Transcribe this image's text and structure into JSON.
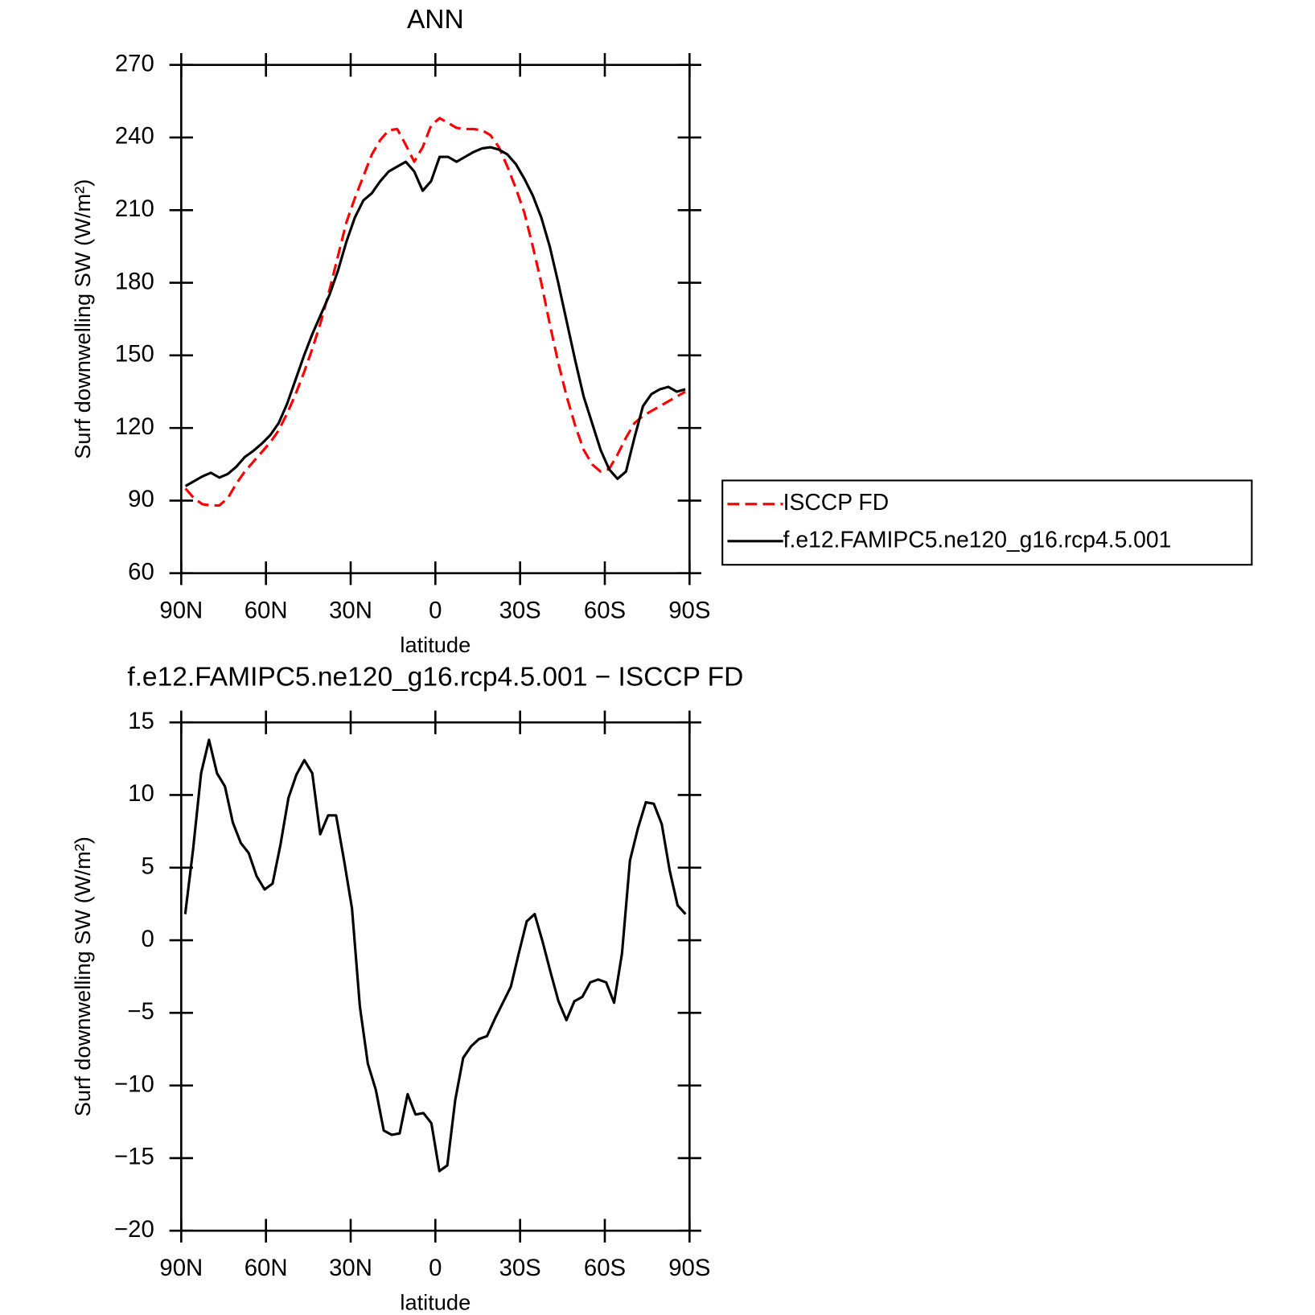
{
  "chart_data": [
    {
      "type": "line",
      "title": "ANN",
      "xlabel": "latitude",
      "ylabel": "Surf downwelling SW (W/m²)",
      "x": [
        88.5,
        85.5,
        82.5,
        79.5,
        76.5,
        73.5,
        70.5,
        67.5,
        64.5,
        61.5,
        58.5,
        55.5,
        52.5,
        49.5,
        46.5,
        43.5,
        40.5,
        37.5,
        34.5,
        31.5,
        28.5,
        25.5,
        22.5,
        19.5,
        16.5,
        13.5,
        10.5,
        7.5,
        4.5,
        1.5,
        -1.5,
        -4.5,
        -7.5,
        -10.5,
        -13.5,
        -16.5,
        -19.5,
        -22.5,
        -25.5,
        -28.5,
        -31.5,
        -34.5,
        -37.5,
        -40.5,
        -43.5,
        -46.5,
        -49.5,
        -52.5,
        -55.5,
        -58.5,
        -61.5,
        -64.5,
        -67.5,
        -70.5,
        -73.5,
        -76.5,
        -79.5,
        -82.5,
        -85.5,
        -88.5
      ],
      "series": [
        {
          "name": "ISCCP FD",
          "color": "#ff0000",
          "line_style": "dashed",
          "values": [
            95,
            91,
            88.5,
            88,
            88,
            91,
            97,
            102,
            106,
            110,
            114,
            119,
            126,
            134,
            143,
            153,
            164,
            177,
            191,
            205,
            215,
            224,
            233,
            239,
            243,
            243.5,
            237,
            230,
            236,
            245,
            248,
            246,
            244,
            243.5,
            243.5,
            243,
            241,
            236,
            228,
            219,
            209,
            195,
            180,
            163,
            147,
            133,
            121,
            111,
            105,
            102,
            103,
            109,
            116,
            122,
            125,
            127,
            129,
            131,
            133,
            135
          ]
        },
        {
          "name": "f.e12.FAMIPC5.ne120_g16.rcp4.5.001",
          "color": "#000000",
          "line_style": "solid",
          "values": [
            96,
            98,
            100,
            101.5,
            99.5,
            101,
            104,
            108,
            110.5,
            113.5,
            117,
            122,
            130,
            140,
            150,
            159,
            167,
            175,
            185,
            197,
            207,
            214,
            217,
            222,
            226,
            228,
            230,
            226,
            218,
            222,
            232,
            232,
            230,
            232,
            234,
            235.5,
            236,
            235,
            233,
            229,
            223,
            216,
            207,
            195,
            180,
            164,
            148,
            133,
            122,
            111,
            103,
            99,
            102,
            116,
            129,
            134,
            136,
            137,
            135,
            136
          ]
        }
      ],
      "xlim": [
        90,
        -90
      ],
      "xticks": [
        {
          "value": 90,
          "label": "90N"
        },
        {
          "value": 60,
          "label": "60N"
        },
        {
          "value": 30,
          "label": "30N"
        },
        0,
        {
          "value": -30,
          "label": "30S"
        },
        {
          "value": -60,
          "label": "60S"
        },
        {
          "value": -90,
          "label": "90S"
        }
      ],
      "ylim": [
        60,
        270
      ],
      "yticks": [
        60,
        90,
        120,
        150,
        180,
        210,
        240,
        270
      ],
      "legend": "right"
    },
    {
      "type": "line",
      "title": "f.e12.FAMIPC5.ne120_g16.rcp4.5.001 − ISCCP FD",
      "xlabel": "latitude",
      "ylabel": "Surf downwelling SW (W/m²)",
      "x": [
        88.59,
        85.78,
        82.97,
        80.16,
        77.34,
        74.53,
        71.72,
        68.91,
        66.09,
        63.28,
        60.47,
        57.66,
        54.84,
        52.03,
        49.22,
        46.41,
        43.59,
        40.78,
        37.97,
        35.16,
        32.34,
        29.53,
        26.72,
        23.91,
        21.09,
        18.28,
        15.47,
        12.66,
        9.84,
        7.03,
        4.22,
        1.41,
        -1.41,
        -4.22,
        -7.03,
        -9.84,
        -12.66,
        -15.47,
        -18.28,
        -21.09,
        -23.91,
        -26.72,
        -29.53,
        -32.34,
        -35.16,
        -37.97,
        -40.78,
        -43.59,
        -46.41,
        -49.22,
        -52.03,
        -54.84,
        -57.66,
        -60.47,
        -63.28,
        -66.09,
        -68.91,
        -71.72,
        -74.53,
        -77.34,
        -80.16,
        -82.97,
        -85.78,
        -88.59
      ],
      "series": [
        {
          "color": "#000000",
          "line_style": "solid",
          "values": [
            1.8,
            6.3,
            11.5,
            13.8,
            11.5,
            10.6,
            8.1,
            6.7,
            6,
            4.4,
            3.5,
            3.9,
            6.6,
            9.8,
            11.4,
            12.4,
            11.5,
            7.3,
            8.6,
            8.6,
            5.5,
            2.2,
            -4.6,
            -8.5,
            -10.3,
            -13.1,
            -13.4,
            -13.3,
            -10.6,
            -12,
            -11.9,
            -12.6,
            -15.9,
            -15.5,
            -11,
            -8.1,
            -7.3,
            -6.8,
            -6.6,
            -5.4,
            -4.3,
            -3.2,
            -0.9,
            1.3,
            1.8,
            -0.1,
            -2.2,
            -4.2,
            -5.5,
            -4.2,
            -3.9,
            -2.9,
            -2.7,
            -2.9,
            -4.3,
            -0.9,
            5.5,
            7.7,
            9.5,
            9.4,
            8,
            4.8,
            2.4,
            1.8
          ]
        }
      ],
      "xlim": [
        90,
        -90
      ],
      "xticks": [
        {
          "value": 90,
          "label": "90N"
        },
        {
          "value": 60,
          "label": "60N"
        },
        {
          "value": 30,
          "label": "30N"
        },
        0,
        {
          "value": -30,
          "label": "30S"
        },
        {
          "value": -60,
          "label": "60S"
        },
        {
          "value": -90,
          "label": "90S"
        }
      ],
      "ylim": [
        -20,
        15
      ],
      "yticks": [
        {
          "value": -20,
          "label": "−20"
        },
        {
          "value": -15,
          "label": "−15"
        },
        {
          "value": -10,
          "label": "−10"
        },
        {
          "value": -5,
          "label": "−5"
        },
        0,
        5,
        10,
        15
      ]
    }
  ]
}
